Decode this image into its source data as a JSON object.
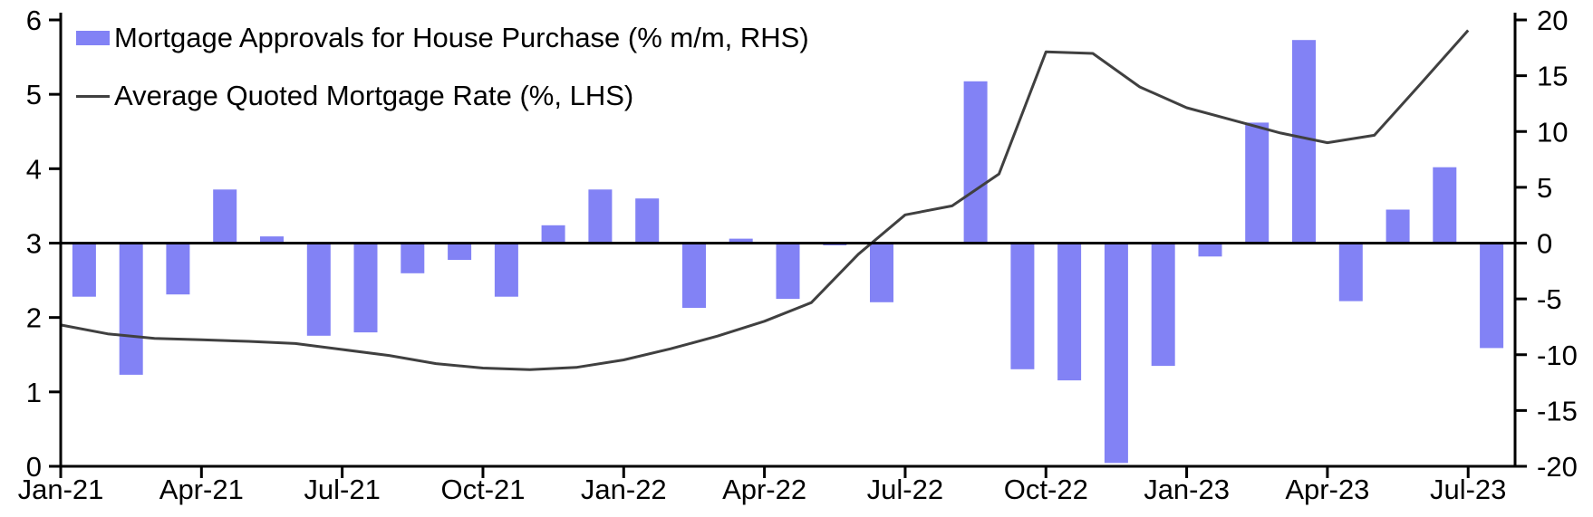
{
  "chart_data": {
    "type": "bar",
    "title": "",
    "xlabel": "",
    "ylabel_left": "",
    "ylabel_right": "",
    "grid": false,
    "legend_position": "top-left",
    "categories": [
      "Jan-21",
      "Feb-21",
      "Mar-21",
      "Apr-21",
      "May-21",
      "Jun-21",
      "Jul-21",
      "Aug-21",
      "Sep-21",
      "Oct-21",
      "Nov-21",
      "Dec-21",
      "Jan-22",
      "Feb-22",
      "Mar-22",
      "Apr-22",
      "May-22",
      "Jun-22",
      "Jul-22",
      "Aug-22",
      "Sep-22",
      "Oct-22",
      "Nov-22",
      "Dec-22",
      "Jan-23",
      "Feb-23",
      "Mar-23",
      "Apr-23",
      "May-23",
      "Jun-23",
      "Jul-23"
    ],
    "x_tick_labels": [
      "Jan-21",
      "Apr-21",
      "Jul-21",
      "Oct-21",
      "Jan-22",
      "Apr-22",
      "Jul-22",
      "Oct-22",
      "Jan-23",
      "Apr-23",
      "Jul-23"
    ],
    "series": [
      {
        "name": "Mortgage Approvals for House Purchase (% m/m, RHS)",
        "type": "bar",
        "axis": "right",
        "color": "#8282F5",
        "values": [
          -4.8,
          -11.8,
          -4.6,
          4.8,
          0.6,
          -8.3,
          -8.0,
          -2.7,
          -1.5,
          -4.8,
          1.6,
          4.8,
          4.0,
          -5.8,
          0.4,
          -5.0,
          -0.2,
          -5.3,
          0.0,
          14.5,
          -11.3,
          -12.3,
          -19.7,
          -11.0,
          -1.2,
          10.8,
          18.2,
          -5.2,
          3.0,
          6.8,
          -9.4
        ]
      },
      {
        "name": "Average Quoted Mortgage Rate (%, LHS)",
        "type": "line",
        "axis": "left",
        "color": "#404040",
        "values": [
          1.9,
          1.78,
          1.72,
          1.7,
          1.68,
          1.65,
          1.57,
          1.49,
          1.38,
          1.32,
          1.3,
          1.33,
          1.43,
          1.58,
          1.75,
          1.95,
          2.2,
          2.85,
          3.38,
          3.5,
          3.93,
          5.57,
          5.55,
          5.1,
          4.82,
          4.65,
          4.48,
          4.35,
          4.45,
          5.15,
          5.86
        ]
      }
    ],
    "left_axis": {
      "min": 0,
      "max": 6,
      "step": 1,
      "tick_labels": [
        "0",
        "1",
        "2",
        "3",
        "4",
        "5",
        "6"
      ]
    },
    "right_axis": {
      "min": -20,
      "max": 20,
      "step": 5,
      "tick_labels": [
        "-20",
        "-15",
        "-10",
        "-5",
        "0",
        "5",
        "10",
        "15",
        "20"
      ]
    }
  },
  "legend": {
    "approvals_label": "Mortgage Approvals for House Purchase (% m/m, RHS)",
    "rate_label": "Average Quoted Mortgage Rate (%, LHS)"
  },
  "colors": {
    "bar_fill": "#8282F5",
    "line_stroke": "#404040",
    "axis": "#000000",
    "background": "#FFFFFF"
  }
}
